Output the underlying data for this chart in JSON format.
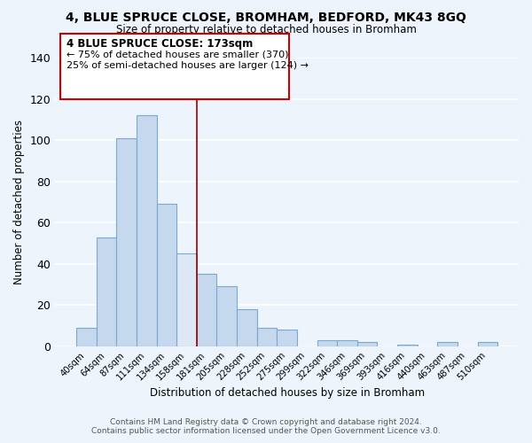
{
  "title": "4, BLUE SPRUCE CLOSE, BROMHAM, BEDFORD, MK43 8GQ",
  "subtitle": "Size of property relative to detached houses in Bromham",
  "xlabel": "Distribution of detached houses by size in Bromham",
  "ylabel": "Number of detached properties",
  "footnote1": "Contains HM Land Registry data © Crown copyright and database right 2024.",
  "footnote2": "Contains public sector information licensed under the Open Government Licence v3.0.",
  "categories": [
    "40sqm",
    "64sqm",
    "87sqm",
    "111sqm",
    "134sqm",
    "158sqm",
    "181sqm",
    "205sqm",
    "228sqm",
    "252sqm",
    "275sqm",
    "299sqm",
    "322sqm",
    "346sqm",
    "369sqm",
    "393sqm",
    "416sqm",
    "440sqm",
    "463sqm",
    "487sqm",
    "510sqm"
  ],
  "values": [
    9,
    53,
    101,
    112,
    69,
    45,
    35,
    29,
    18,
    9,
    8,
    0,
    3,
    3,
    2,
    0,
    1,
    0,
    2,
    0,
    2
  ],
  "bar_color_fill": "#c5d8ed",
  "bar_color_edge": "#7aaad0",
  "bar_color_highlight_fill": "#dce8f5",
  "bar_color_highlight_edge": "#7aaad0",
  "highlight_index": 5,
  "vline_x": 5.5,
  "vline_color": "#990000",
  "annotation_title": "4 BLUE SPRUCE CLOSE: 173sqm",
  "annotation_line1": "← 75% of detached houses are smaller (370)",
  "annotation_line2": "25% of semi-detached houses are larger (124) →",
  "ylim": [
    0,
    140
  ],
  "yticks": [
    0,
    20,
    40,
    60,
    80,
    100,
    120,
    140
  ],
  "background_color": "#eef4fb",
  "grid_color": "#ffffff",
  "annotation_box_edge": "#cc0000",
  "annotation_box_face": "#ffffff"
}
